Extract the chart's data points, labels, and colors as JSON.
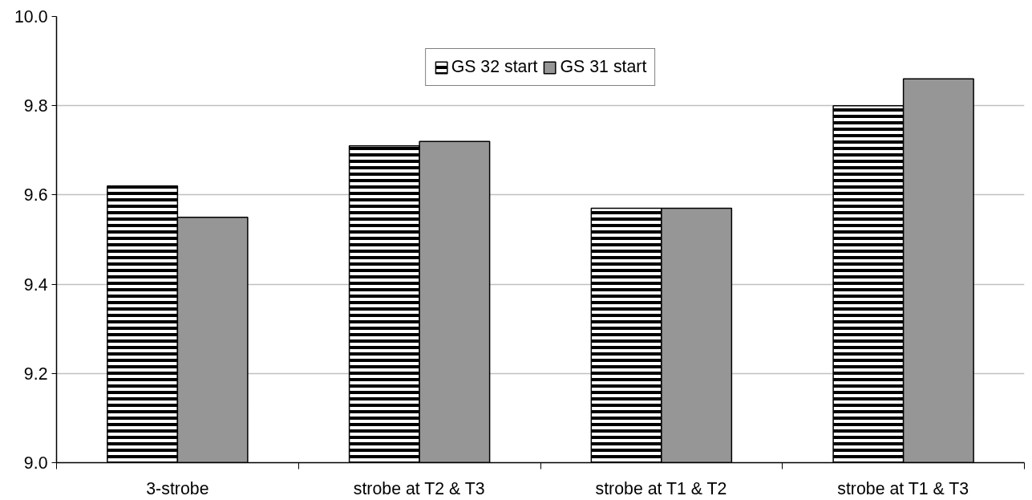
{
  "chart_data": {
    "type": "bar",
    "categories": [
      "3-strobe",
      "strobe at T2 & T3",
      "strobe at T1 & T2",
      "strobe at T1 & T3"
    ],
    "series": [
      {
        "name": "GS 32 start",
        "color": "#000000",
        "values": [
          9.62,
          9.71,
          9.57,
          9.8
        ]
      },
      {
        "name": "GS 31 start",
        "color": "#969696",
        "values": [
          9.55,
          9.72,
          9.57,
          9.86
        ]
      }
    ],
    "ylim": [
      9.0,
      10.0
    ],
    "yticks": [
      {
        "value": 9.0,
        "label": "9.0"
      },
      {
        "value": 9.2,
        "label": "9.2"
      },
      {
        "value": 9.4,
        "label": "9.4"
      },
      {
        "value": 9.6,
        "label": "9.6"
      },
      {
        "value": 9.8,
        "label": "9.8"
      },
      {
        "value": 10.0,
        "label": "10.0"
      }
    ],
    "grid": "y",
    "legend": "top"
  }
}
